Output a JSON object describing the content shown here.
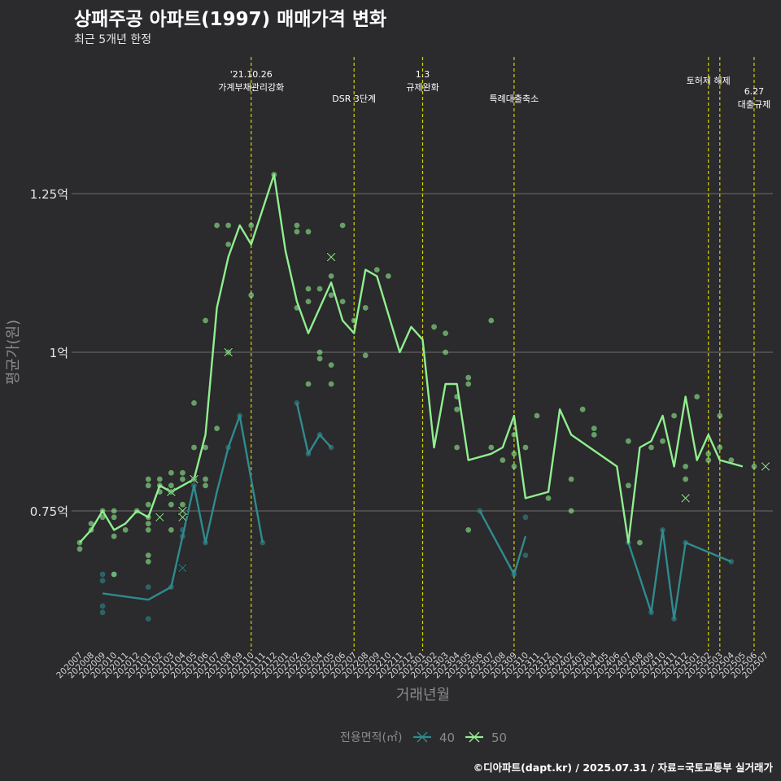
{
  "title": "상패주공 아파트(1997) 매매가격 변화",
  "subtitle": "최근 5개년 한정",
  "caption": "©디아파트(dapt.kr) / 2025.07.31 / 자료=국토교통부 실거래가",
  "chart_data": {
    "type": "line",
    "title": "상패주공 아파트(1997) 매매가격 변화",
    "subtitle": "최근 5개년 한정",
    "xlabel": "거래년월",
    "ylabel": "평균가(원)",
    "ylim": [
      0.54,
      1.29
    ],
    "y_ticks": [
      {
        "value": 0.75,
        "label": "0.75억"
      },
      {
        "value": 1.0,
        "label": "1억"
      },
      {
        "value": 1.25,
        "label": "1.25억"
      }
    ],
    "grid": true,
    "legend": {
      "title": "전용면적(㎡)",
      "placement": "bottom",
      "entries": [
        "40",
        "50"
      ]
    },
    "categories": [
      "202007",
      "202008",
      "202009",
      "202010",
      "202011",
      "202012",
      "202101",
      "202102",
      "202103",
      "202104",
      "202105",
      "202106",
      "202107",
      "202108",
      "202109",
      "202110",
      "202111",
      "202112",
      "202201",
      "202202",
      "202203",
      "202204",
      "202205",
      "202206",
      "202207",
      "202208",
      "202209",
      "202210",
      "202211",
      "202212",
      "202301",
      "202302",
      "202303",
      "202304",
      "202305",
      "202306",
      "202307",
      "202308",
      "202309",
      "202310",
      "202311",
      "202312",
      "202401",
      "202402",
      "202403",
      "202404",
      "202405",
      "202406",
      "202407",
      "202408",
      "202409",
      "202410",
      "202411",
      "202412",
      "202501",
      "202502",
      "202503",
      "202504",
      "202505",
      "202506",
      "202507"
    ],
    "events": [
      {
        "x": "202110",
        "label": "'21.10.26\n가계부채관리강화",
        "row": 0
      },
      {
        "x": "202207",
        "label": "DSR 3단계",
        "row": 1
      },
      {
        "x": "202301",
        "label": "1.3\n규제완화",
        "row": 0
      },
      {
        "x": "202309",
        "label": "특례대출축소",
        "row": 1
      },
      {
        "x": "202502",
        "label": "토허제 해제",
        "row": 0
      },
      {
        "x": "202503",
        "label": "",
        "row": 0
      },
      {
        "x": "202506",
        "label": "6.27\n대출규제",
        "row": 1
      }
    ],
    "series": [
      {
        "name": "40",
        "color": "#2f8b8e",
        "line": [
          [
            "202009",
            0.62
          ],
          [
            "202101",
            0.61
          ],
          [
            "202103",
            0.63
          ],
          [
            "202104",
            0.71
          ],
          [
            "202105",
            0.79
          ],
          [
            "202106",
            0.7
          ],
          [
            "202107",
            0.78
          ],
          [
            "202108",
            0.85
          ],
          [
            "202109",
            0.9
          ],
          [
            "202110",
            0.8
          ],
          [
            "202111",
            0.7
          ],
          null,
          [
            "202202",
            0.92
          ],
          [
            "202203",
            0.84
          ],
          [
            "202204",
            0.87
          ],
          [
            "202205",
            0.85
          ],
          null,
          [
            "202306",
            0.75
          ],
          [
            "202309",
            0.65
          ],
          [
            "202310",
            0.71
          ],
          null,
          [
            "202407",
            0.7
          ],
          [
            "202409",
            0.59
          ],
          [
            "202410",
            0.72
          ],
          [
            "202411",
            0.58
          ],
          [
            "202412",
            0.7
          ],
          [
            "202504",
            0.67
          ]
        ],
        "points": [
          [
            "202009",
            0.65
          ],
          [
            "202009",
            0.64
          ],
          [
            "202009",
            0.6
          ],
          [
            "202009",
            0.59
          ],
          [
            "202010",
            0.65
          ],
          [
            "202101",
            0.63
          ],
          [
            "202101",
            0.58
          ],
          [
            "202103",
            0.63
          ],
          [
            "202104",
            0.71
          ],
          [
            "202104",
            0.72
          ],
          [
            "202105",
            0.79
          ],
          [
            "202106",
            0.7
          ],
          [
            "202108",
            0.85
          ],
          [
            "202109",
            0.9
          ],
          [
            "202111",
            0.7
          ],
          [
            "202202",
            0.92
          ],
          [
            "202203",
            0.84
          ],
          [
            "202204",
            0.87
          ],
          [
            "202205",
            0.85
          ],
          [
            "202306",
            0.75
          ],
          [
            "202309",
            0.65
          ],
          [
            "202310",
            0.74
          ],
          [
            "202310",
            0.68
          ],
          [
            "202407",
            0.7
          ],
          [
            "202409",
            0.59
          ],
          [
            "202410",
            0.72
          ],
          [
            "202411",
            0.58
          ],
          [
            "202412",
            0.7
          ],
          [
            "202504",
            0.67
          ]
        ],
        "marks": [
          [
            "202104",
            0.66
          ]
        ]
      },
      {
        "name": "50",
        "color": "#90ee90",
        "line": [
          [
            "202007",
            0.7
          ],
          [
            "202008",
            0.72
          ],
          [
            "202009",
            0.75
          ],
          [
            "202010",
            0.72
          ],
          [
            "202011",
            0.73
          ],
          [
            "202012",
            0.75
          ],
          [
            "202101",
            0.74
          ],
          [
            "202102",
            0.79
          ],
          [
            "202103",
            0.78
          ],
          [
            "202104",
            0.79
          ],
          [
            "202105",
            0.8
          ],
          [
            "202106",
            0.87
          ],
          [
            "202107",
            1.07
          ],
          [
            "202108",
            1.15
          ],
          [
            "202109",
            1.2
          ],
          [
            "202110",
            1.17
          ],
          [
            "202112",
            1.28
          ],
          [
            "202201",
            1.16
          ],
          [
            "202202",
            1.08
          ],
          [
            "202203",
            1.03
          ],
          [
            "202204",
            1.07
          ],
          [
            "202205",
            1.11
          ],
          [
            "202206",
            1.05
          ],
          [
            "202207",
            1.03
          ],
          [
            "202208",
            1.13
          ],
          [
            "202209",
            1.12
          ],
          [
            "202211",
            1.0
          ],
          [
            "202212",
            1.04
          ],
          [
            "202301",
            1.02
          ],
          [
            "202302",
            0.85
          ],
          [
            "202303",
            0.95
          ],
          [
            "202304",
            0.95
          ],
          [
            "202305",
            0.83
          ],
          [
            "202307",
            0.84
          ],
          [
            "202308",
            0.85
          ],
          [
            "202309",
            0.9
          ],
          [
            "202310",
            0.77
          ],
          [
            "202312",
            0.78
          ],
          [
            "202401",
            0.91
          ],
          [
            "202402",
            0.87
          ],
          [
            "202406",
            0.82
          ],
          [
            "202407",
            0.7
          ],
          [
            "202408",
            0.85
          ],
          [
            "202409",
            0.86
          ],
          [
            "202410",
            0.9
          ],
          [
            "202411",
            0.82
          ],
          [
            "202412",
            0.93
          ],
          [
            "202501",
            0.83
          ],
          [
            "202502",
            0.87
          ],
          [
            "202503",
            0.83
          ],
          [
            "202505",
            0.82
          ]
        ],
        "points": [
          [
            "202007",
            0.69
          ],
          [
            "202007",
            0.7
          ],
          [
            "202008",
            0.72
          ],
          [
            "202008",
            0.73
          ],
          [
            "202009",
            0.74
          ],
          [
            "202009",
            0.75
          ],
          [
            "202010",
            0.71
          ],
          [
            "202010",
            0.74
          ],
          [
            "202010",
            0.75
          ],
          [
            "202010",
            0.65
          ],
          [
            "202011",
            0.72
          ],
          [
            "202012",
            0.75
          ],
          [
            "202101",
            0.8
          ],
          [
            "202101",
            0.79
          ],
          [
            "202101",
            0.76
          ],
          [
            "202101",
            0.74
          ],
          [
            "202101",
            0.73
          ],
          [
            "202101",
            0.72
          ],
          [
            "202101",
            0.68
          ],
          [
            "202101",
            0.67
          ],
          [
            "202102",
            0.8
          ],
          [
            "202102",
            0.79
          ],
          [
            "202102",
            0.78
          ],
          [
            "202103",
            0.81
          ],
          [
            "202103",
            0.79
          ],
          [
            "202103",
            0.78
          ],
          [
            "202103",
            0.76
          ],
          [
            "202103",
            0.72
          ],
          [
            "202104",
            0.81
          ],
          [
            "202104",
            0.8
          ],
          [
            "202104",
            0.76
          ],
          [
            "202105",
            0.92
          ],
          [
            "202105",
            0.85
          ],
          [
            "202105",
            0.8
          ],
          [
            "202106",
            0.85
          ],
          [
            "202106",
            0.8
          ],
          [
            "202106",
            0.79
          ],
          [
            "202106",
            1.05
          ],
          [
            "202107",
            1.2
          ],
          [
            "202107",
            0.88
          ],
          [
            "202108",
            1.2
          ],
          [
            "202108",
            1.17
          ],
          [
            "202108",
            1.0
          ],
          [
            "202110",
            1.2
          ],
          [
            "202110",
            1.09
          ],
          [
            "202112",
            1.28
          ],
          [
            "202202",
            1.2
          ],
          [
            "202202",
            1.19
          ],
          [
            "202202",
            1.07
          ],
          [
            "202203",
            1.19
          ],
          [
            "202203",
            1.1
          ],
          [
            "202203",
            1.08
          ],
          [
            "202203",
            0.95
          ],
          [
            "202204",
            1.1
          ],
          [
            "202204",
            1.0
          ],
          [
            "202204",
            0.99
          ],
          [
            "202205",
            1.12
          ],
          [
            "202205",
            1.09
          ],
          [
            "202205",
            0.98
          ],
          [
            "202205",
            0.95
          ],
          [
            "202206",
            1.2
          ],
          [
            "202206",
            1.08
          ],
          [
            "202207",
            1.05
          ],
          [
            "202208",
            1.07
          ],
          [
            "202208",
            0.995
          ],
          [
            "202209",
            1.13
          ],
          [
            "202210",
            1.12
          ],
          [
            "202302",
            1.04
          ],
          [
            "202303",
            1.03
          ],
          [
            "202303",
            1.0
          ],
          [
            "202304",
            0.93
          ],
          [
            "202304",
            0.91
          ],
          [
            "202304",
            0.85
          ],
          [
            "202305",
            0.96
          ],
          [
            "202305",
            0.95
          ],
          [
            "202305",
            0.72
          ],
          [
            "202307",
            1.05
          ],
          [
            "202307",
            0.85
          ],
          [
            "202308",
            0.83
          ],
          [
            "202309",
            0.87
          ],
          [
            "202309",
            0.84
          ],
          [
            "202309",
            0.82
          ],
          [
            "202310",
            0.85
          ],
          [
            "202311",
            0.9
          ],
          [
            "202312",
            0.77
          ],
          [
            "202402",
            0.8
          ],
          [
            "202402",
            0.75
          ],
          [
            "202403",
            0.91
          ],
          [
            "202404",
            0.88
          ],
          [
            "202404",
            0.87
          ],
          [
            "202407",
            0.86
          ],
          [
            "202407",
            0.79
          ],
          [
            "202408",
            0.7
          ],
          [
            "202409",
            0.85
          ],
          [
            "202410",
            0.86
          ],
          [
            "202411",
            0.9
          ],
          [
            "202412",
            0.8
          ],
          [
            "202412",
            0.82
          ],
          [
            "202501",
            0.93
          ],
          [
            "202502",
            0.84
          ],
          [
            "202502",
            0.83
          ],
          [
            "202503",
            0.9
          ],
          [
            "202503",
            0.85
          ],
          [
            "202504",
            0.83
          ],
          [
            "202506",
            0.82
          ]
        ],
        "marks": [
          [
            "202102",
            0.74
          ],
          [
            "202103",
            0.78
          ],
          [
            "202104",
            0.75
          ],
          [
            "202104",
            0.74
          ],
          [
            "202105",
            0.8
          ],
          [
            "202108",
            1.0
          ],
          [
            "202205",
            1.15
          ],
          [
            "202412",
            0.77
          ],
          [
            "202507",
            0.82
          ]
        ]
      }
    ]
  }
}
